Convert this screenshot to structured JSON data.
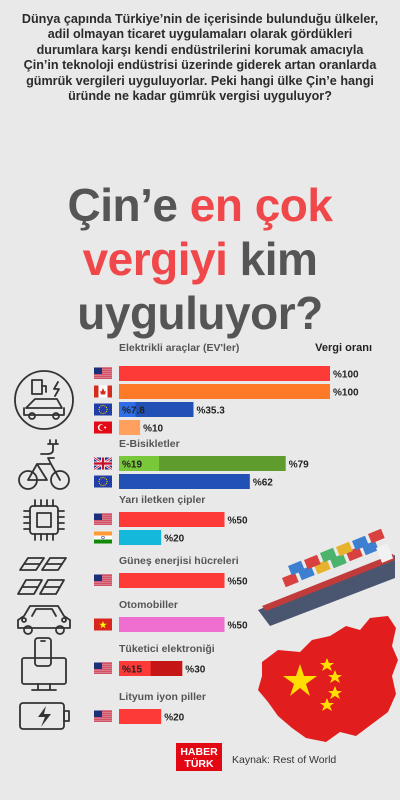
{
  "intro_text": "Dünya çapında Türkiye’nin de içerisinde bulunduğu ülkeler, adil olmayan ticaret uygulamaları olarak gördükleri durumlara karşı kendi endüstrilerini korumak amacıyla Çin’in teknoloji endüstrisi üzerinde giderek artan oranlarda gümrük vergileri uyguluyorlar. Peki hangi ülke Çin’e hangi üründe ne kadar gümrük vergisi uyguluyor?",
  "headline": {
    "part1": "Çin’e ",
    "part2_red": "en çok",
    "part3_red": "vergiyi",
    "part4": " kim",
    "part5": "uyguluyor?"
  },
  "footer": {
    "logo_line1": "HABER",
    "logo_line2": "TÜRK",
    "source": "Kaynak: Rest of World"
  },
  "colors": {
    "red": "#fe3a39",
    "orange": "#ff7a28",
    "light_orange": "#ffa05f",
    "green": "#5e9c2d",
    "blue": "#2251b5",
    "cyan": "#13b8da",
    "pink": "#ee6fcf",
    "dark_red": "#c51515",
    "text": "#555555"
  },
  "chart_data": {
    "type": "bar",
    "value_header": "Vergi oranı",
    "xlim": [
      0,
      100
    ],
    "groups": [
      {
        "name": "Elektrikli araçlar (EV'ler)",
        "icon": "ev-charging-icon",
        "bars": [
          {
            "country": "ABD",
            "flag": "us-flag",
            "value": 100,
            "label": "%100",
            "color": "#fe3a39"
          },
          {
            "country": "Kanada",
            "flag": "canada-flag",
            "value": 100,
            "label": "%100",
            "color": "#ff7a28"
          },
          {
            "country": "AB",
            "flag": "eu-flag",
            "value": 35.3,
            "label": "%35.3",
            "inner_value": 7.8,
            "inner_label": "%7.8",
            "inner_color": "#2f6ee8",
            "color": "#2251b5"
          },
          {
            "country": "Türkiye",
            "flag": "turkey-flag",
            "value": 10,
            "label": "%10",
            "color": "#ffa05f"
          }
        ]
      },
      {
        "name": "E-Bisikletler",
        "icon": "e-bike-icon",
        "bars": [
          {
            "country": "Birleşik Krallık",
            "flag": "uk-flag",
            "value": 79,
            "label": "%79",
            "inner_value": 19,
            "inner_label": "%19",
            "inner_color": "#78c83a",
            "color": "#5e9c2d"
          },
          {
            "country": "AB",
            "flag": "eu-flag",
            "value": 62,
            "label": "%62",
            "color": "#2251b5"
          }
        ]
      },
      {
        "name": "Yarı iletken çipler",
        "icon": "chip-icon",
        "bars": [
          {
            "country": "ABD",
            "flag": "us-flag",
            "value": 50,
            "label": "%50",
            "color": "#fe3a39"
          },
          {
            "country": "Hindistan",
            "flag": "india-flag",
            "value": 20,
            "label": "%20",
            "color": "#13b8da"
          }
        ]
      },
      {
        "name": "Güneş enerjisi hücreleri",
        "icon": "solar-panel-icon",
        "bars": [
          {
            "country": "ABD",
            "flag": "us-flag",
            "value": 50,
            "label": "%50",
            "color": "#fe3a39"
          }
        ]
      },
      {
        "name": "Otomobiller",
        "icon": "car-icon",
        "bars": [
          {
            "country": "Vietnam",
            "flag": "vietnam-flag",
            "value": 50,
            "label": "%50",
            "color": "#ee6fcf"
          }
        ]
      },
      {
        "name": "Tüketici elektroniği",
        "icon": "phone-monitor-icon",
        "bars": [
          {
            "country": "ABD",
            "flag": "us-flag",
            "value": 30,
            "label": "%30",
            "inner_value": 15,
            "inner_label": "%15",
            "inner_color": "#fe3a39",
            "color": "#c51515"
          }
        ]
      },
      {
        "name": "Lityum iyon piller",
        "icon": "battery-icon",
        "bars": [
          {
            "country": "ABD",
            "flag": "us-flag",
            "value": 20,
            "label": "%20",
            "color": "#fe3a39"
          }
        ]
      }
    ]
  }
}
